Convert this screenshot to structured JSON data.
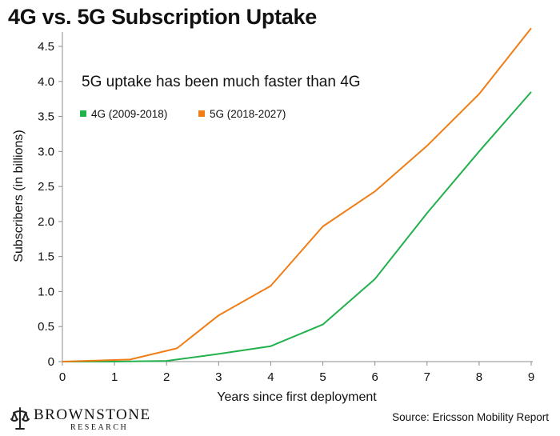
{
  "chart_data": {
    "type": "line",
    "title": "4G vs. 5G Subscription Uptake",
    "annotation": "5G uptake has been much faster than 4G",
    "xlabel": "Years since first deployment",
    "ylabel": "Subscribers (in billions)",
    "xlim": [
      0,
      9
    ],
    "ylim": [
      0,
      4.5
    ],
    "x_ticks": [
      0,
      1,
      2,
      3,
      4,
      5,
      6,
      7,
      8,
      9
    ],
    "y_ticks": [
      {
        "value": 0,
        "label": "0"
      },
      {
        "value": 0.5,
        "label": "0.5"
      },
      {
        "value": 1.0,
        "label": "1.0"
      },
      {
        "value": 1.5,
        "label": "1.5"
      },
      {
        "value": 2.0,
        "label": "2.0"
      },
      {
        "value": 2.5,
        "label": "2.5"
      },
      {
        "value": 3.0,
        "label": "3.0"
      },
      {
        "value": 3.5,
        "label": "3.5"
      },
      {
        "value": 4.0,
        "label": "4.0"
      },
      {
        "value": 4.5,
        "label": "4.5"
      }
    ],
    "grid": false,
    "legend_position": "top-left",
    "series": [
      {
        "name": "4G (2009-2018)",
        "color": "#22b14c",
        "points": [
          [
            0,
            0.0
          ],
          [
            1,
            0.0
          ],
          [
            2,
            0.01
          ],
          [
            3,
            0.11
          ],
          [
            4,
            0.22
          ],
          [
            5,
            0.53
          ],
          [
            6,
            1.18
          ],
          [
            7,
            2.12
          ],
          [
            8,
            3.0
          ],
          [
            9,
            3.85
          ]
        ]
      },
      {
        "name": "5G (2018-2027)",
        "color": "#f07d16",
        "points": [
          [
            0,
            0.0
          ],
          [
            1.3,
            0.03
          ],
          [
            2.2,
            0.19
          ],
          [
            3,
            0.66
          ],
          [
            4,
            1.08
          ],
          [
            5,
            1.93
          ],
          [
            6,
            2.43
          ],
          [
            7,
            3.08
          ],
          [
            8,
            3.82
          ],
          [
            9,
            4.76
          ]
        ]
      }
    ]
  },
  "footer": {
    "brand_name": "BROWNSTONE",
    "brand_sub": "RESEARCH",
    "source": "Source: Ericsson Mobility Report"
  },
  "colors": {
    "axis": "#8c8c8c",
    "text": "#111111"
  }
}
